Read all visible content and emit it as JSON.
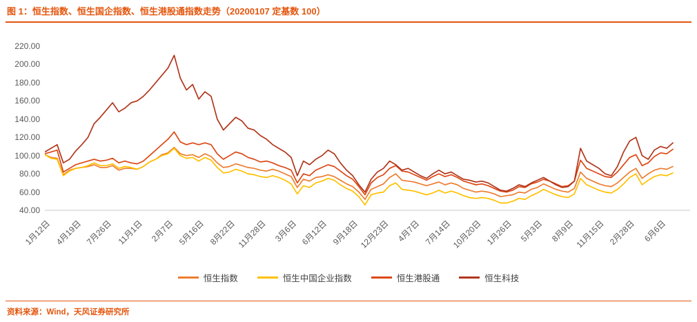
{
  "header": {
    "title": "图 1：恒生指数、恒生国企指数、恒生港股通指数走势（20200107 定基数 100）"
  },
  "footer": {
    "source": "资料来源：Wind，天风证券研究所"
  },
  "colors": {
    "accent": "#e4560e",
    "axis_text": "#595959",
    "baseline": "#c9c9c9"
  },
  "chart_data": {
    "type": "line",
    "title": "恒生指数、恒生国企指数、恒生港股通指数走势（20200107 定基数 100）",
    "xlabel": "",
    "ylabel": "",
    "ylim": [
      40,
      220
    ],
    "ytick_step": 20,
    "y_tick_labels": [
      "220.00",
      "200.00",
      "180.00",
      "160.00",
      "140.00",
      "120.00",
      "100.00",
      "80.00",
      "60.00",
      "40.00"
    ],
    "x_tick_labels": [
      "1月12日",
      "4月19日",
      "7月26日",
      "11月1日",
      "2月7日",
      "5月16日",
      "8月22日",
      "11月28日",
      "3月6日",
      "6月12日",
      "9月18日",
      "12月23日",
      "4月7日",
      "7月14日",
      "10月20日",
      "1月26日",
      "5月3日",
      "8月9日",
      "11月15日",
      "2月28日",
      "6月6日"
    ],
    "x_ticks_every": 5,
    "grid": false,
    "legend_position": "bottom",
    "series": [
      {
        "name": "恒生指数",
        "color": "#ed7d31",
        "values": [
          101,
          98,
          97,
          79,
          84,
          86,
          87,
          88,
          90,
          87,
          87,
          89,
          84,
          86,
          86,
          85,
          88,
          93,
          96,
          101,
          103,
          109,
          102,
          100,
          101,
          98,
          102,
          99,
          92,
          87,
          88,
          91,
          89,
          87,
          86,
          84,
          83,
          85,
          83,
          80,
          77,
          65,
          74,
          72,
          76,
          77,
          79,
          77,
          73,
          69,
          66,
          60,
          52,
          63,
          66,
          69,
          76,
          80,
          73,
          72,
          71,
          69,
          67,
          69,
          71,
          68,
          70,
          68,
          64,
          62,
          60,
          61,
          60,
          58,
          55,
          56,
          57,
          60,
          59,
          63,
          65,
          69,
          66,
          63,
          61,
          60,
          64,
          82,
          75,
          72,
          69,
          67,
          66,
          70,
          76,
          82,
          86,
          75,
          80,
          84,
          86,
          85,
          88
        ]
      },
      {
        "name": "恒生中国企业指数",
        "color": "#ffc000",
        "values": [
          101,
          97,
          96,
          78,
          83,
          86,
          87,
          89,
          92,
          89,
          89,
          91,
          86,
          88,
          87,
          85,
          88,
          93,
          96,
          100,
          102,
          108,
          100,
          97,
          98,
          94,
          98,
          95,
          87,
          81,
          82,
          85,
          83,
          80,
          79,
          77,
          76,
          78,
          76,
          73,
          69,
          58,
          67,
          65,
          70,
          72,
          75,
          73,
          68,
          64,
          61,
          55,
          46,
          57,
          59,
          60,
          67,
          70,
          63,
          62,
          61,
          59,
          57,
          59,
          62,
          59,
          61,
          59,
          56,
          54,
          53,
          54,
          53,
          51,
          48,
          48,
          50,
          53,
          52,
          56,
          59,
          63,
          60,
          57,
          55,
          54,
          58,
          75,
          68,
          65,
          62,
          60,
          59,
          63,
          69,
          76,
          80,
          68,
          73,
          77,
          79,
          78,
          81
        ]
      },
      {
        "name": "恒生港股通",
        "color": "#dc4814",
        "values": [
          102,
          104,
          106,
          82,
          86,
          90,
          92,
          94,
          96,
          94,
          95,
          97,
          92,
          94,
          92,
          91,
          94,
          100,
          106,
          112,
          118,
          126,
          115,
          112,
          114,
          112,
          114,
          112,
          102,
          96,
          100,
          104,
          102,
          98,
          96,
          93,
          94,
          92,
          89,
          87,
          84,
          70,
          80,
          78,
          84,
          87,
          90,
          88,
          83,
          78,
          74,
          66,
          57,
          70,
          76,
          79,
          86,
          89,
          83,
          82,
          79,
          76,
          73,
          77,
          80,
          77,
          79,
          76,
          72,
          70,
          68,
          69,
          67,
          64,
          61,
          60,
          62,
          66,
          65,
          69,
          71,
          74,
          72,
          69,
          66,
          67,
          72,
          95,
          86,
          83,
          80,
          77,
          76,
          82,
          90,
          98,
          101,
          89,
          92,
          99,
          103,
          102,
          107
        ]
      },
      {
        "name": "恒生科技",
        "color": "#b0361c",
        "values": [
          104,
          108,
          112,
          92,
          96,
          105,
          112,
          120,
          135,
          142,
          150,
          158,
          148,
          152,
          158,
          160,
          165,
          172,
          180,
          188,
          196,
          210,
          185,
          172,
          178,
          162,
          170,
          165,
          140,
          128,
          135,
          142,
          138,
          130,
          128,
          122,
          118,
          112,
          108,
          104,
          98,
          78,
          94,
          90,
          96,
          100,
          106,
          102,
          92,
          84,
          78,
          68,
          60,
          74,
          82,
          86,
          94,
          90,
          84,
          86,
          82,
          78,
          75,
          80,
          84,
          80,
          82,
          78,
          74,
          73,
          71,
          72,
          70,
          66,
          62,
          61,
          64,
          68,
          66,
          70,
          73,
          76,
          72,
          68,
          65,
          66,
          72,
          108,
          94,
          90,
          86,
          80,
          78,
          88,
          104,
          116,
          120,
          100,
          96,
          106,
          110,
          108,
          114
        ]
      }
    ]
  }
}
